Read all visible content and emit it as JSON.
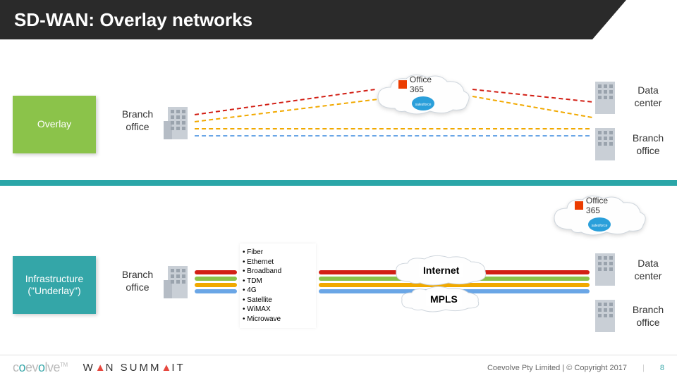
{
  "title": "SD-WAN: Overlay networks",
  "divider_color": "#2aa6a8",
  "overlay": {
    "label": "Overlay",
    "label_bg": "#8bc34a",
    "branch_left": "Branch\noffice",
    "data_center": "Data\ncenter",
    "branch_right": "Branch\noffice",
    "cloud_apps": {
      "o365": "Office 365"
    },
    "dash_colors": [
      "#d21f15",
      "#f1a900",
      "#f1a900",
      "#6aa6e6"
    ]
  },
  "underlay": {
    "label": "Infrastructure\n(\"Underlay\")",
    "label_bg": "#34a6a8",
    "branch_left": "Branch\noffice",
    "data_center": "Data\ncenter",
    "branch_right": "Branch\noffice",
    "cloud_apps": {
      "o365": "Office 365"
    },
    "transport_types": [
      "Fiber",
      "Ethernet",
      "Broadband",
      "TDM",
      "4G",
      "Satellite",
      "WiMAX",
      "Microwave"
    ],
    "internet_label": "Internet",
    "mpls_label": "MPLS",
    "pipe_colors": [
      "#d21f15",
      "#8bc34a",
      "#f1a900",
      "#6aa6e6"
    ]
  },
  "buildings": {
    "fill": "#c9cfd6",
    "window": "#9aa3ad"
  },
  "footer": {
    "copyright": "Coevolve Pty Limited | © Copyright 2017",
    "page": "8"
  }
}
